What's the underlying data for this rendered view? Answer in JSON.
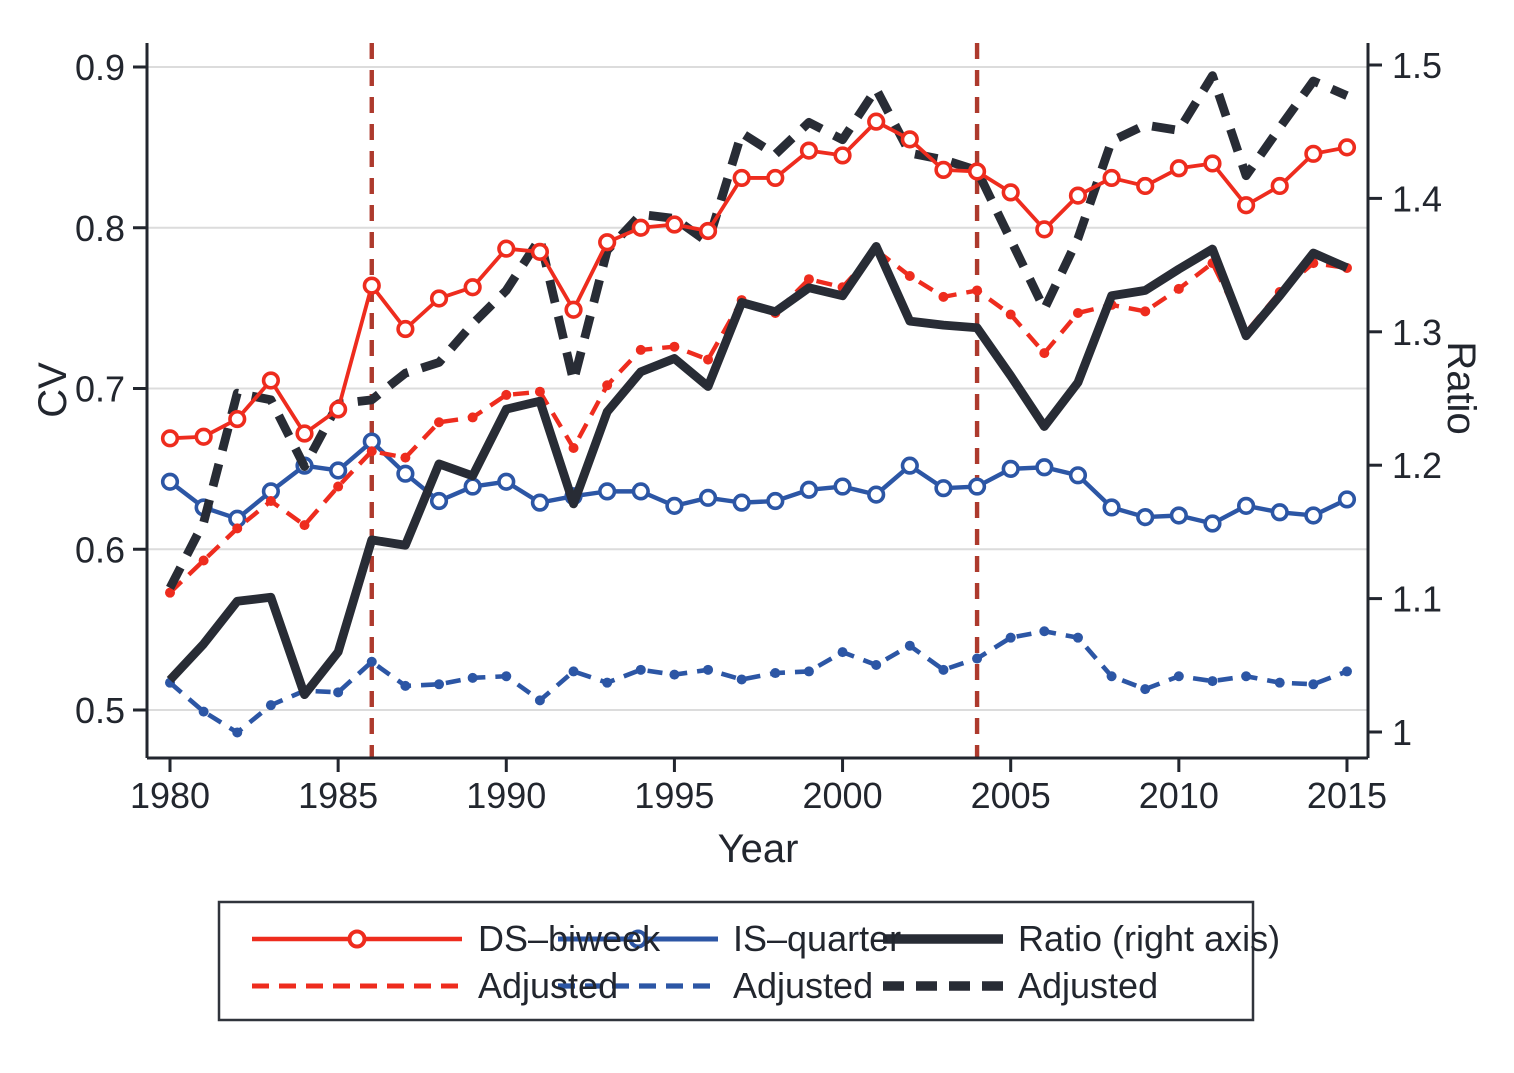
{
  "figure": {
    "kind": "dual-axis line chart",
    "background": "#ffffff"
  },
  "colors": {
    "red": "#ee2c1e",
    "blue": "#2c56a5",
    "black_line": "#282c35",
    "reference_line": "#ad3a2d",
    "grid": "#dcdcdc",
    "axis": "#22262e",
    "text": "#22262e",
    "legend_border": "#30343c"
  },
  "chart_data": {
    "type": "line",
    "title": "",
    "xlabel": "Year",
    "ylabel_left": "CV",
    "ylabel_right": "Ratio",
    "grid": true,
    "legend_position": "bottom",
    "x_ticks": [
      1980,
      1985,
      1990,
      1995,
      2000,
      2005,
      2010,
      2015
    ],
    "x_tick_labels": [
      "1980",
      "1985",
      "1990",
      "1995",
      "2000",
      "2005",
      "2010",
      "2015"
    ],
    "x_range": [
      1980,
      2015
    ],
    "left_axis": {
      "ticks": [
        0.5,
        0.6,
        0.7,
        0.8,
        0.9
      ],
      "labels": [
        "0.5",
        "0.6",
        "0.7",
        "0.8",
        "0.9"
      ],
      "range": [
        0.47,
        0.92
      ]
    },
    "right_axis": {
      "ticks": [
        1,
        1.1,
        1.2,
        1.3,
        1.4,
        1.5
      ],
      "labels": [
        "1",
        "1.1",
        "1.2",
        "1.3",
        "1.4",
        "1.5"
      ],
      "range": [
        1.0,
        1.5
      ]
    },
    "vertical_reference_lines": [
      1986,
      2004
    ],
    "years": [
      1980,
      1981,
      1982,
      1983,
      1984,
      1985,
      1986,
      1987,
      1988,
      1989,
      1990,
      1991,
      1992,
      1993,
      1994,
      1995,
      1996,
      1997,
      1998,
      1999,
      2000,
      2001,
      2002,
      2003,
      2004,
      2005,
      2006,
      2007,
      2008,
      2009,
      2010,
      2011,
      2012,
      2013,
      2014,
      2015
    ],
    "series": [
      {
        "id": "is_adjusted",
        "name": "Adjusted (IS)",
        "axis": "left",
        "color": "blue",
        "style": "dashed",
        "marker": "dot",
        "width": 4.6,
        "values": [
          0.517,
          0.499,
          0.486,
          0.503,
          0.512,
          0.511,
          0.53,
          0.515,
          0.516,
          0.52,
          0.521,
          0.506,
          0.524,
          0.517,
          0.525,
          0.522,
          0.525,
          0.519,
          0.523,
          0.524,
          0.536,
          0.528,
          0.54,
          0.525,
          0.532,
          0.545,
          0.549,
          0.545,
          0.521,
          0.513,
          0.521,
          0.518,
          0.521,
          0.517,
          0.516,
          0.524
        ]
      },
      {
        "id": "is_quarter",
        "name": "IS–quarter",
        "axis": "left",
        "color": "blue",
        "style": "solid",
        "marker": "circle",
        "width": 4.4,
        "values": [
          0.642,
          0.626,
          0.619,
          0.636,
          0.652,
          0.649,
          0.667,
          0.647,
          0.63,
          0.639,
          0.642,
          0.629,
          0.633,
          0.636,
          0.636,
          0.627,
          0.632,
          0.629,
          0.63,
          0.637,
          0.639,
          0.634,
          0.652,
          0.638,
          0.639,
          0.65,
          0.651,
          0.646,
          0.626,
          0.62,
          0.621,
          0.616,
          0.627,
          0.623,
          0.621,
          0.631
        ]
      },
      {
        "id": "ds_adjusted",
        "name": "Adjusted (DS)",
        "axis": "left",
        "color": "red",
        "style": "dashed",
        "marker": "dot",
        "width": 4.4,
        "values": [
          0.573,
          0.593,
          0.613,
          0.63,
          0.615,
          0.639,
          0.661,
          0.657,
          0.679,
          0.682,
          0.696,
          0.698,
          0.663,
          0.702,
          0.724,
          0.726,
          0.718,
          0.755,
          0.747,
          0.768,
          0.763,
          0.786,
          0.77,
          0.757,
          0.761,
          0.746,
          0.722,
          0.747,
          0.752,
          0.748,
          0.762,
          0.778,
          0.735,
          0.76,
          0.778,
          0.775
        ]
      },
      {
        "id": "ratio_adjusted",
        "name": "Adjusted (Ratio)",
        "axis": "right",
        "color": "black_line",
        "style": "dashed",
        "marker": "none",
        "width": 8.8,
        "values": [
          1.108,
          1.157,
          1.254,
          1.249,
          1.199,
          1.246,
          1.249,
          1.269,
          1.277,
          1.306,
          1.331,
          1.37,
          1.263,
          1.361,
          1.388,
          1.385,
          1.367,
          1.449,
          1.433,
          1.457,
          1.444,
          1.482,
          1.434,
          1.429,
          1.421,
          1.369,
          1.317,
          1.37,
          1.443,
          1.455,
          1.451,
          1.492,
          1.417,
          1.453,
          1.488,
          1.477
        ]
      },
      {
        "id": "ratio",
        "name": "Ratio (right axis)",
        "axis": "right",
        "color": "black_line",
        "style": "solid",
        "marker": "none",
        "width": 8.8,
        "values": [
          1.039,
          1.066,
          1.098,
          1.101,
          1.028,
          1.06,
          1.144,
          1.14,
          1.201,
          1.192,
          1.242,
          1.248,
          1.171,
          1.24,
          1.27,
          1.28,
          1.259,
          1.322,
          1.315,
          1.333,
          1.327,
          1.364,
          1.308,
          1.305,
          1.303,
          1.267,
          1.229,
          1.262,
          1.327,
          1.331,
          1.347,
          1.362,
          1.297,
          1.327,
          1.359,
          1.348
        ]
      },
      {
        "id": "ds_biweek",
        "name": "DS–biweek",
        "axis": "left",
        "color": "red",
        "style": "solid",
        "marker": "circle",
        "width": 3.8,
        "values": [
          0.669,
          0.67,
          0.681,
          0.705,
          0.672,
          0.687,
          0.764,
          0.737,
          0.756,
          0.763,
          0.787,
          0.785,
          0.749,
          0.791,
          0.8,
          0.802,
          0.798,
          0.831,
          0.831,
          0.848,
          0.845,
          0.866,
          0.855,
          0.836,
          0.835,
          0.822,
          0.799,
          0.82,
          0.831,
          0.826,
          0.837,
          0.84,
          0.814,
          0.826,
          0.846,
          0.85
        ]
      }
    ]
  },
  "legend": {
    "entries": [
      {
        "label": "DS–biweek",
        "series": "ds_biweek"
      },
      {
        "label": "Adjusted",
        "series": "ds_adjusted"
      },
      {
        "label": "IS–quarter",
        "series": "is_quarter"
      },
      {
        "label": "Adjusted",
        "series": "is_adjusted"
      },
      {
        "label": "Ratio (right axis)",
        "series": "ratio"
      },
      {
        "label": "Adjusted",
        "series": "ratio_adjusted"
      }
    ]
  }
}
